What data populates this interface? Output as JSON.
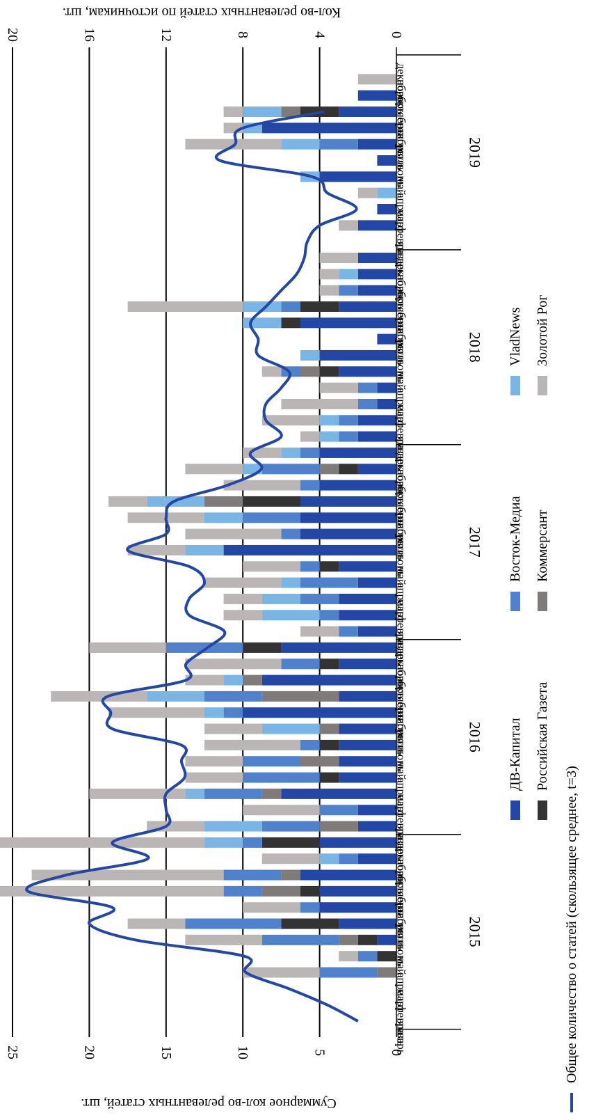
{
  "chart_data": {
    "type": "bar",
    "orientation": "rotated-90",
    "ylabel": "Суммарное кол-во релевантных статей, шт.",
    "y2label": "Кол-во релевантных статей по источникам, шт.",
    "ylim": [
      0,
      25
    ],
    "y2lim": [
      0,
      20
    ],
    "ticks": [
      "0",
      "5",
      "10",
      "15",
      "20",
      "25"
    ],
    "ticks2": [
      "0",
      "4",
      "8",
      "12",
      "16",
      "20"
    ],
    "grid": true,
    "months": [
      "январь",
      "февраль",
      "март",
      "апрель",
      "май",
      "июнь",
      "июль",
      "август",
      "сентябрь",
      "октябрь",
      "ноябрь",
      "декабрь"
    ],
    "years": [
      "2015",
      "2016",
      "2017",
      "2018",
      "2019"
    ],
    "series": [
      {
        "name": "ДВ-Капитал",
        "color": "#2347A6",
        "values": [
          0,
          0,
          0,
          0,
          0,
          1,
          3,
          4,
          4,
          5,
          2,
          4,
          2,
          2,
          6,
          3,
          3,
          3,
          3,
          8,
          3,
          7,
          3,
          6,
          2,
          3,
          3,
          2,
          3,
          9,
          5,
          5,
          5,
          4,
          2,
          4,
          2,
          2,
          1,
          1,
          3,
          4,
          1,
          5,
          3,
          2,
          2,
          2,
          0,
          2,
          1,
          0,
          4,
          1,
          2,
          7,
          3,
          2,
          0,
          0
        ]
      },
      {
        "name": "Российская Газета",
        "color": "#333333",
        "values": [
          0,
          0,
          0,
          0,
          1,
          1,
          3,
          0,
          1,
          0,
          0,
          3,
          0,
          0,
          0,
          1,
          0,
          1,
          0,
          0,
          0,
          0,
          1,
          2,
          0,
          0,
          0,
          0,
          1,
          0,
          0,
          0,
          3,
          0,
          1,
          0,
          0,
          0,
          0,
          0,
          1,
          0,
          0,
          1,
          2,
          0,
          0,
          0,
          0,
          0,
          0,
          0,
          0,
          0,
          0,
          0,
          2,
          0,
          0,
          0
        ]
      },
      {
        "name": "Коммерсант",
        "color": "#7F7B7B",
        "values": [
          0,
          0,
          0,
          1,
          0,
          1,
          0,
          0,
          2,
          1,
          0,
          0,
          2,
          0,
          1,
          0,
          2,
          0,
          1,
          0,
          4,
          1,
          0,
          0,
          0,
          0,
          0,
          0,
          0,
          0,
          0,
          0,
          2,
          0,
          1,
          0,
          0,
          0,
          0,
          0,
          1,
          0,
          0,
          0,
          0,
          0,
          0,
          0,
          0,
          0,
          0,
          0,
          0,
          0,
          0,
          0,
          1,
          0,
          0,
          0
        ]
      },
      {
        "name": "Восток-Медиа",
        "color": "#4F81CC",
        "values": [
          0,
          0,
          0,
          3,
          1,
          4,
          5,
          1,
          2,
          3,
          1,
          1,
          3,
          2,
          3,
          4,
          3,
          1,
          0,
          1,
          3,
          0,
          2,
          4,
          1,
          1,
          2,
          3,
          1,
          0,
          1,
          3,
          0,
          1,
          3,
          1,
          1,
          1,
          1,
          1,
          1,
          0,
          0,
          0,
          1,
          1,
          0,
          0,
          0,
          0,
          0,
          0,
          0,
          0,
          2,
          0,
          0,
          0,
          0,
          0
        ]
      },
      {
        "name": "VladNews",
        "color": "#79B6E6",
        "values": [
          0,
          0,
          0,
          0,
          0,
          0,
          0,
          0,
          0,
          0,
          1,
          2,
          3,
          0,
          1,
          0,
          0,
          0,
          3,
          1,
          3,
          1,
          0,
          0,
          0,
          3,
          2,
          1,
          0,
          2,
          0,
          2,
          3,
          0,
          1,
          1,
          1,
          1,
          0,
          0,
          0,
          1,
          0,
          2,
          2,
          0,
          1,
          0,
          0,
          0,
          0,
          1,
          1,
          0,
          2,
          1,
          2,
          0,
          0,
          0
        ]
      },
      {
        "name": "Золотой Рог",
        "color": "#BBB6B6",
        "values": [
          0,
          0,
          0,
          4,
          1,
          4,
          3,
          3,
          13,
          10,
          3,
          12,
          3,
          4,
          5,
          3,
          3,
          5,
          3,
          5,
          5,
          2,
          5,
          4,
          2,
          2,
          2,
          4,
          3,
          3,
          5,
          4,
          2,
          4,
          3,
          2,
          1,
          3,
          4,
          2,
          1,
          0,
          0,
          0,
          6,
          1,
          1,
          2,
          0,
          1,
          0,
          1,
          0,
          0,
          5,
          1,
          1,
          0,
          2,
          0
        ]
      }
    ],
    "line": {
      "name": "Общее количество о статей (скользящее  среднее, t=3)",
      "color": "#2347A6",
      "values": [
        2.5,
        4.5,
        7,
        9.8,
        9.9,
        17,
        20,
        18.5,
        24,
        21.5,
        16.2,
        18.5,
        15,
        15,
        15,
        13.8,
        14,
        14,
        18.5,
        18.6,
        18.8,
        13.7,
        13.7,
        12.3,
        11.2,
        13.5,
        13.5,
        12.5,
        13.5,
        17.5,
        15,
        15,
        14.5,
        11,
        8.8,
        9.5,
        7.5,
        8.5,
        8.5,
        7.5,
        7,
        9,
        9,
        9.5,
        8.5,
        7.5,
        6.5,
        6,
        5.8,
        5,
        2.6,
        4.5,
        5.5,
        11.5,
        10.5,
        10,
        4.7,
        null,
        null,
        null
      ]
    }
  },
  "legend_left": [
    "ДВ-Капитал",
    "Российская Газета",
    "Общее количество о статей (скользящее  среднее, t=3)"
  ],
  "legend_mid": [
    "Восток-Медиа",
    "Коммерсант"
  ],
  "legend_right": [
    "VladNews",
    "Золотой Рог"
  ]
}
